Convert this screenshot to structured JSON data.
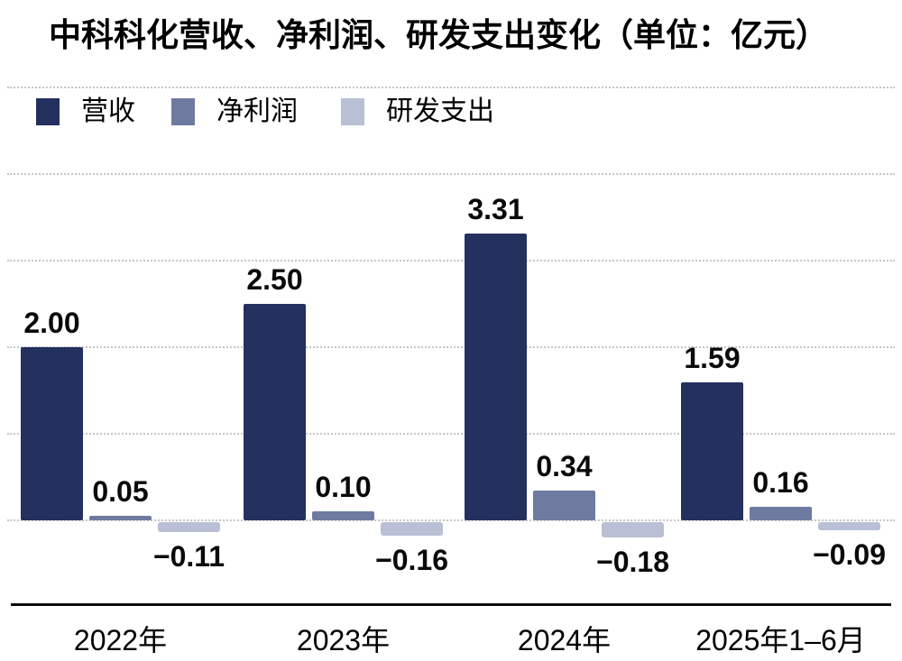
{
  "title": "中科科化营收、净利润、研发支出变化（单位：亿元）",
  "legend": [
    {
      "label": "营收",
      "color": "#24305e"
    },
    {
      "label": "净利润",
      "color": "#6e7aa0"
    },
    {
      "label": "研发支出",
      "color": "#b9bfd4"
    }
  ],
  "chart_data": {
    "type": "bar",
    "title": "中科科化营收、净利润、研发支出变化",
    "unit": "亿元",
    "categories": [
      "2022年",
      "2023年",
      "2024年",
      "2025年1–6月"
    ],
    "series": [
      {
        "name": "营收",
        "color": "#24305e",
        "values": [
          2.0,
          2.5,
          3.31,
          1.59
        ],
        "labels": [
          "2.00",
          "2.50",
          "3.31",
          "1.59"
        ]
      },
      {
        "name": "净利润",
        "color": "#6e7aa0",
        "values": [
          0.05,
          0.1,
          0.34,
          0.16
        ],
        "labels": [
          "0.05",
          "0.10",
          "0.34",
          "0.16"
        ]
      },
      {
        "name": "研发支出",
        "color": "#b9bfd4",
        "values": [
          -0.11,
          -0.16,
          -0.18,
          -0.09
        ],
        "labels": [
          "−0.11",
          "−0.16",
          "−0.18",
          "−0.09"
        ]
      }
    ],
    "ylim": [
      -1,
      5
    ],
    "gridline_values": [
      0,
      1,
      2,
      3,
      4,
      5
    ],
    "grid": "horizontal-dotted",
    "legend_position": "top-left-inside",
    "value_labels": "shown"
  }
}
